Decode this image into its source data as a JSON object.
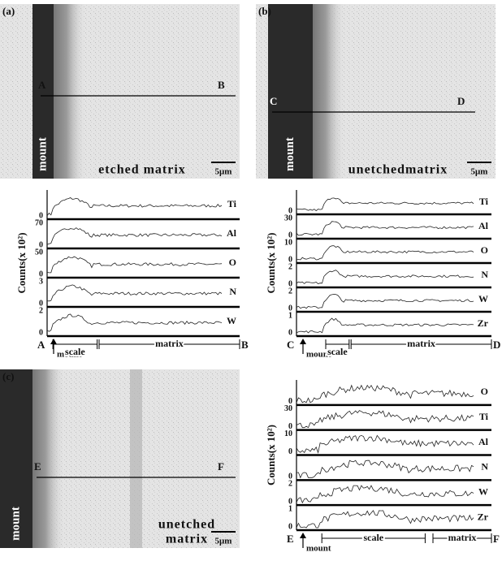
{
  "panels": [
    {
      "label": "(a)",
      "image": {
        "mount": "mount",
        "matrix": [
          "etched matrix"
        ],
        "scale": "5μm",
        "start": "A",
        "end": "B"
      },
      "profile": {
        "y_label": "Counts(x 10²)",
        "elements": [
          {
            "name": "Ti",
            "ticks": [
              "0"
            ]
          },
          {
            "name": "Al",
            "ticks": [
              "70",
              "0"
            ]
          },
          {
            "name": "O",
            "ticks": [
              "50",
              "0"
            ]
          },
          {
            "name": "N",
            "ticks": [
              "3",
              "0"
            ]
          },
          {
            "name": "W",
            "ticks": [
              "2",
              "0"
            ]
          }
        ],
        "bottom": {
          "start": "A",
          "mount": "mount",
          "scale": "scale",
          "matrix": "matrix",
          "end": "B"
        }
      }
    },
    {
      "label": "(b)",
      "image": {
        "mount": "mount",
        "matrix": [
          "unetchedmatrix"
        ],
        "scale": "5μm",
        "start": "C",
        "end": "D"
      },
      "profile": {
        "y_label": "Counts(x 10²)",
        "elements": [
          {
            "name": "Ti",
            "ticks": [
              "0"
            ]
          },
          {
            "name": "Al",
            "ticks": [
              "30",
              "0"
            ]
          },
          {
            "name": "O",
            "ticks": [
              "10",
              "0"
            ]
          },
          {
            "name": "N",
            "ticks": [
              "2",
              "0"
            ]
          },
          {
            "name": "W",
            "ticks": [
              "2",
              "0"
            ]
          },
          {
            "name": "Zr",
            "ticks": [
              "1",
              "0"
            ]
          }
        ],
        "bottom": {
          "start": "C",
          "mount": "mount",
          "scale": "scale",
          "matrix": "matrix",
          "end": "D"
        }
      }
    },
    {
      "label": "(c)",
      "image": {
        "mount": "mount",
        "matrix": [
          "unetched",
          "matrix"
        ],
        "scale": "5μm",
        "start": "E",
        "end": "F"
      },
      "profile": {
        "y_label": "Counts(x 10²)",
        "elements": [
          {
            "name": "O",
            "ticks": [
              "0"
            ]
          },
          {
            "name": "Ti",
            "ticks": [
              "30",
              "0"
            ]
          },
          {
            "name": "Al",
            "ticks": [
              "10",
              "0"
            ]
          },
          {
            "name": "N",
            "ticks": [
              "0"
            ]
          },
          {
            "name": "W",
            "ticks": [
              "2",
              "0"
            ]
          },
          {
            "name": "Zr",
            "ticks": [
              "1",
              "0"
            ]
          }
        ],
        "bottom": {
          "start": "E",
          "mount": "mount",
          "scale": "scale",
          "matrix": "matrix",
          "end": "F"
        }
      }
    }
  ]
}
